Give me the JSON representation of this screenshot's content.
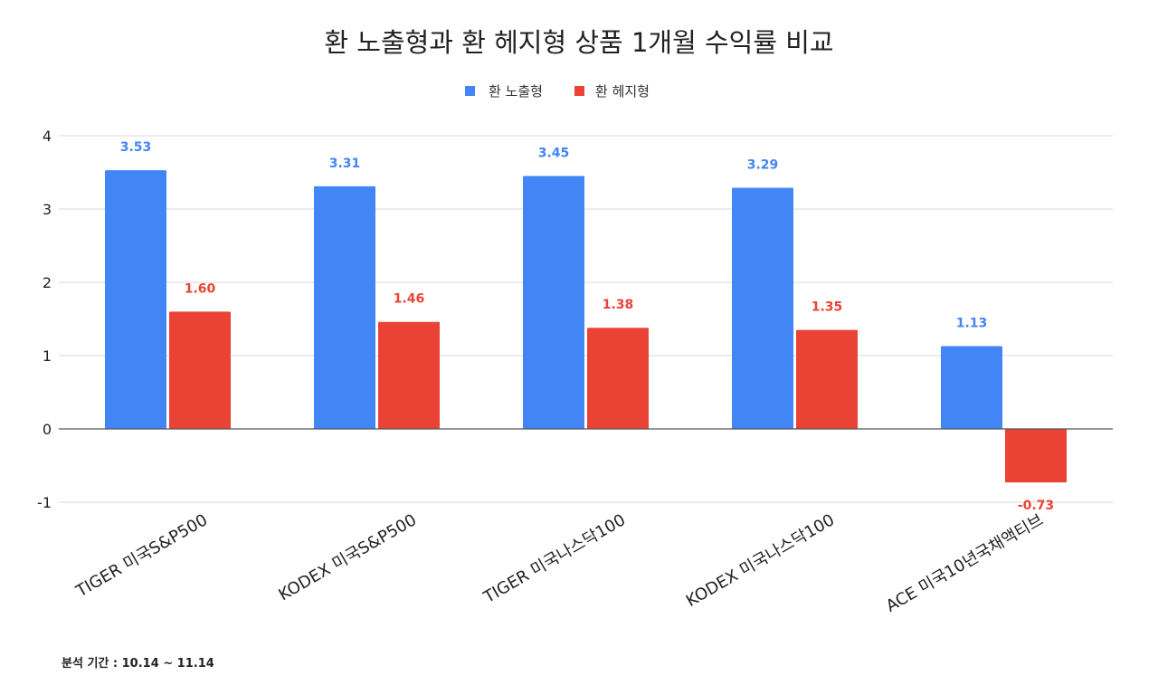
{
  "chart_data": {
    "type": "bar",
    "title": "환 노출형과 환 헤지형 상품 1개월 수익률 비교",
    "categories": [
      "TIGER 미국S&P500",
      "KODEX 미국S&P500",
      "TIGER 미국나스닥100",
      "KODEX 미국나스닥100",
      "ACE 미국10년국채액티브"
    ],
    "series": [
      {
        "name": "환 노출형",
        "color": "#4285f4",
        "values": [
          3.53,
          3.31,
          3.45,
          3.29,
          1.13
        ],
        "labels": [
          "3.53",
          "3.31",
          "3.45",
          "3.29",
          "1.13"
        ]
      },
      {
        "name": "환 헤지형",
        "color": "#ea4335",
        "values": [
          1.6,
          1.46,
          1.38,
          1.35,
          -0.73
        ],
        "labels": [
          "1.60",
          "1.46",
          "1.38",
          "1.35",
          "-0.73"
        ]
      }
    ],
    "yticks": [
      "4",
      "3",
      "2",
      "1",
      "0",
      "-1"
    ],
    "ylim": [
      -1,
      4
    ],
    "grid": true,
    "legend": "top-center"
  },
  "footnote": "분석 기간 : 10.14 ~ 11.14"
}
